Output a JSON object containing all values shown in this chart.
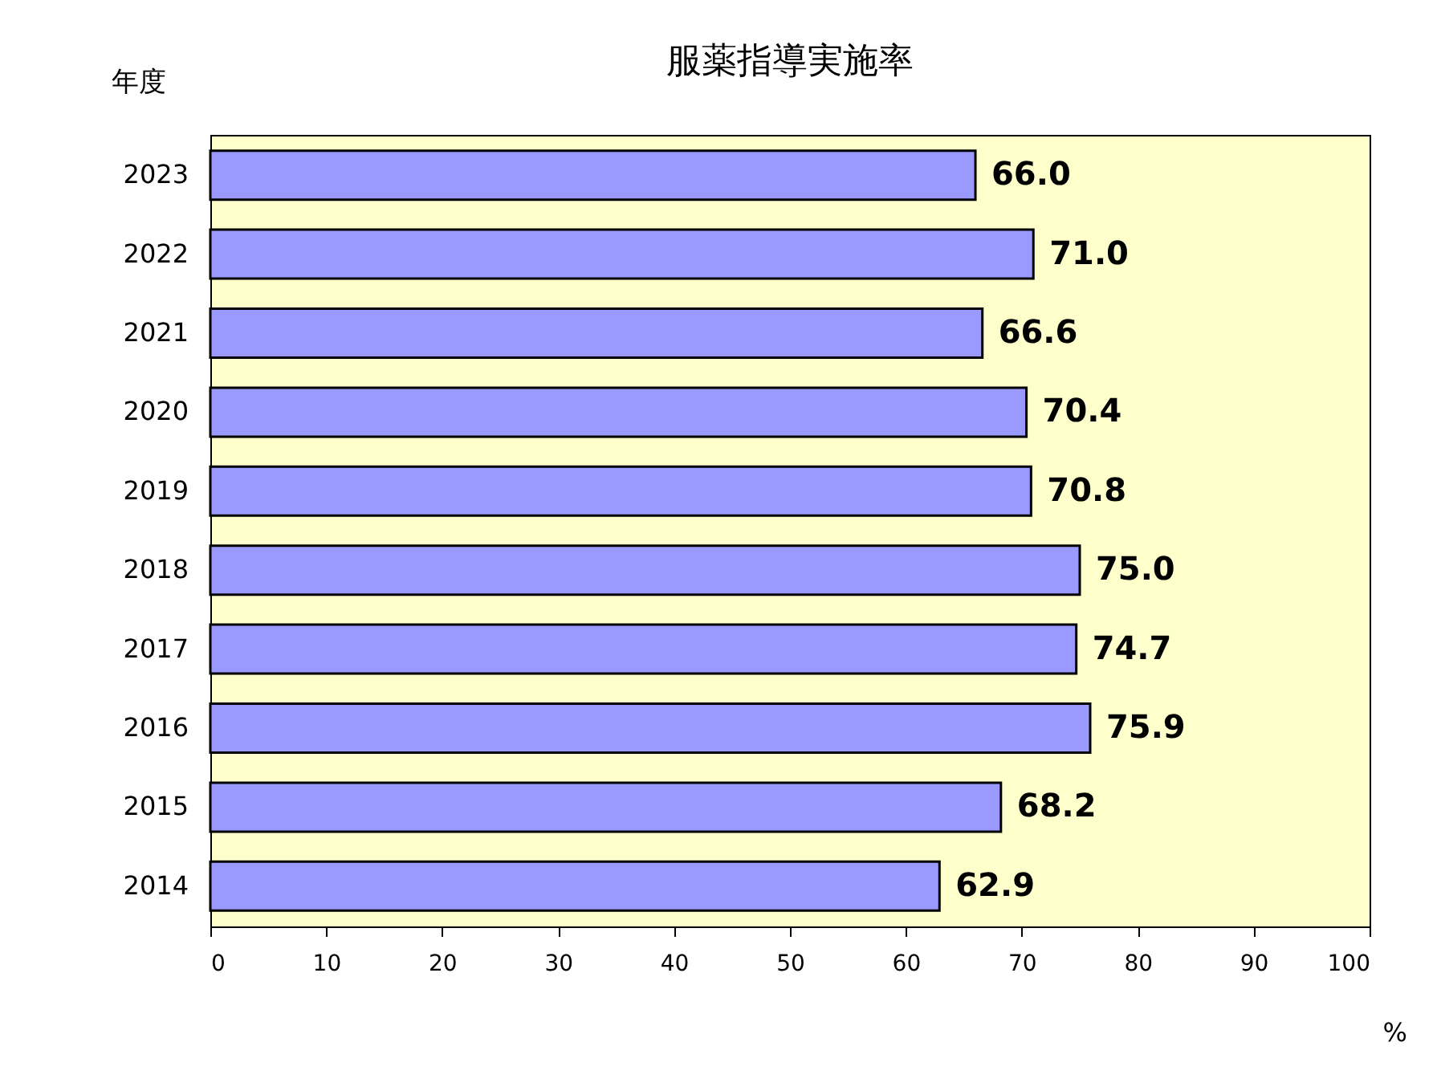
{
  "chart_data": {
    "type": "bar",
    "orientation": "horizontal",
    "title": "服薬指導実施率",
    "ylabel": "年度",
    "xlabel": "%",
    "categories": [
      "2023",
      "2022",
      "2021",
      "2020",
      "2019",
      "2018",
      "2017",
      "2016",
      "2015",
      "2014"
    ],
    "values": [
      66.0,
      71.0,
      66.6,
      70.4,
      70.8,
      75.0,
      74.7,
      75.9,
      68.2,
      62.9
    ],
    "value_labels": [
      "66.0",
      "71.0",
      "66.6",
      "70.4",
      "70.8",
      "75.0",
      "74.7",
      "75.9",
      "68.2",
      "62.9"
    ],
    "color": "#9999ff",
    "xlim": [
      0,
      100
    ],
    "xticks": [
      0,
      10,
      20,
      30,
      40,
      50,
      60,
      70,
      80,
      90,
      100
    ],
    "grid": false
  }
}
